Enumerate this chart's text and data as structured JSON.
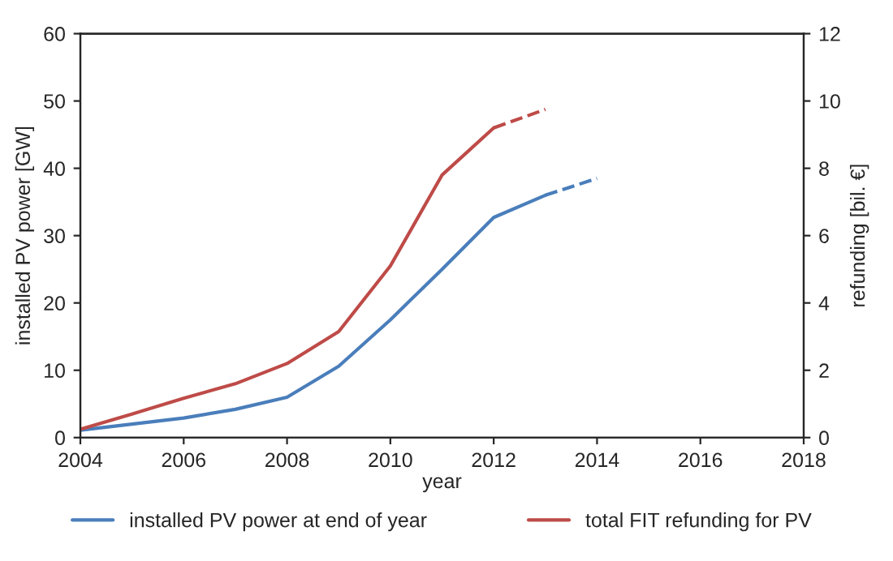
{
  "chart_data": {
    "type": "line",
    "xlabel": "year",
    "ylabel": "installed PV power [GW]",
    "y2label": "refunding [bil. €]",
    "x": [
      2004,
      2005,
      2006,
      2007,
      2008,
      2009,
      2010,
      2011,
      2012,
      2013
    ],
    "series": [
      {
        "name": "installed PV power at end of year",
        "color": "#4a7ebb",
        "values": [
          1.1,
          2.0,
          2.9,
          4.2,
          6.0,
          10.6,
          17.5,
          25.0,
          32.7,
          36.0
        ]
      },
      {
        "color": "#4a7ebb",
        "line_style": "dashed",
        "x": [
          2013,
          2014
        ],
        "values": [
          36.0,
          38.5
        ]
      },
      {
        "name": "total FIT refunding for PV",
        "color": "#be4b48",
        "axis": "y2",
        "values": [
          0.25,
          0.7,
          1.17,
          1.6,
          2.2,
          3.15,
          5.1,
          7.8,
          9.2,
          null
        ]
      },
      {
        "color": "#be4b48",
        "axis": "y2",
        "line_style": "dashed",
        "x": [
          2012,
          2013
        ],
        "values": [
          9.2,
          9.75
        ]
      }
    ],
    "xlim": [
      2004,
      2018
    ],
    "xticks": [
      2004,
      2006,
      2008,
      2010,
      2012,
      2014,
      2016,
      2018
    ],
    "ylim": [
      0,
      60
    ],
    "yticks": [
      0,
      10,
      20,
      30,
      40,
      50,
      60
    ],
    "y2lim": [
      0,
      12
    ],
    "y2ticks": [
      0,
      2,
      4,
      6,
      8,
      10,
      12
    ],
    "legend": "bottom",
    "grid": false
  }
}
